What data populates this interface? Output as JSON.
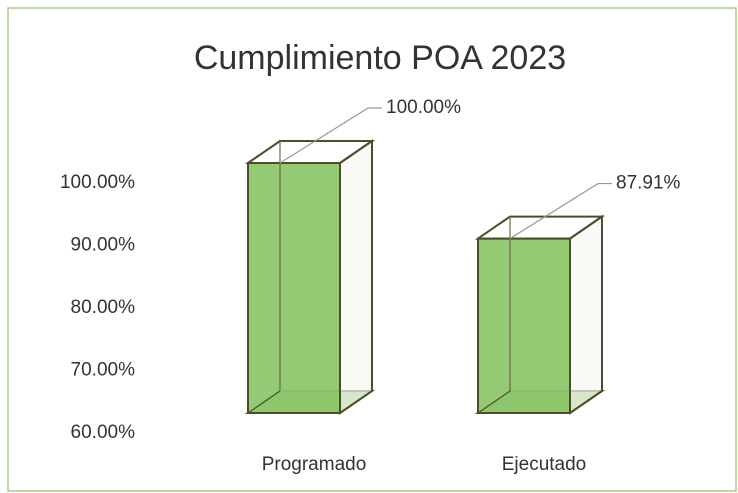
{
  "chart_data": {
    "type": "bar3d",
    "title": "Cumplimiento POA 2023",
    "categories": [
      "Programado",
      "Ejecutado"
    ],
    "values": [
      100,
      87.91
    ],
    "value_labels": [
      "100.00%",
      "87.91%"
    ],
    "color": "#8dc76b",
    "ylim": [
      60,
      100
    ],
    "yticks": [
      {
        "value": 60,
        "label": "60.00%"
      },
      {
        "value": 70,
        "label": "70.00%"
      },
      {
        "value": 80,
        "label": "80.00%"
      },
      {
        "value": 90,
        "label": "90.00%"
      },
      {
        "value": 100,
        "label": "100.00%"
      }
    ]
  }
}
